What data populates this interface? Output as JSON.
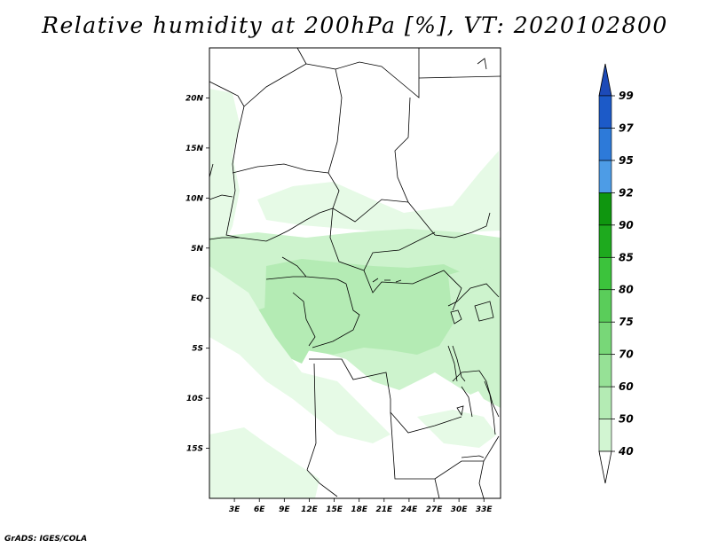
{
  "title": "Relative humidity at 200hPa [%], VT: 2020102800",
  "credit": "GrADS: IGES/COLA",
  "map": {
    "lon_range": [
      0,
      35
    ],
    "lat_range": [
      -20,
      25
    ],
    "lon_ticks": [
      "3E",
      "6E",
      "9E",
      "12E",
      "15E",
      "18E",
      "21E",
      "24E",
      "27E",
      "30E",
      "33E"
    ],
    "lat_ticks": [
      "20N",
      "15N",
      "10N",
      "5N",
      "EQ",
      "5S",
      "10S",
      "15S"
    ]
  },
  "colorbar": {
    "labels": [
      "40",
      "50",
      "60",
      "70",
      "75",
      "80",
      "85",
      "90",
      "92",
      "95",
      "97",
      "99"
    ],
    "colors": [
      "#f0fff0",
      "#d2f5d2",
      "#b4ebb4",
      "#96e196",
      "#78d778",
      "#5acd5a",
      "#3cc33c",
      "#1eaa1e",
      "#0f960f",
      "#4d9ce6",
      "#2d7ad9",
      "#1c5ac8"
    ],
    "under_color": "#ffffff",
    "over_color": "#1c4ab8"
  }
}
